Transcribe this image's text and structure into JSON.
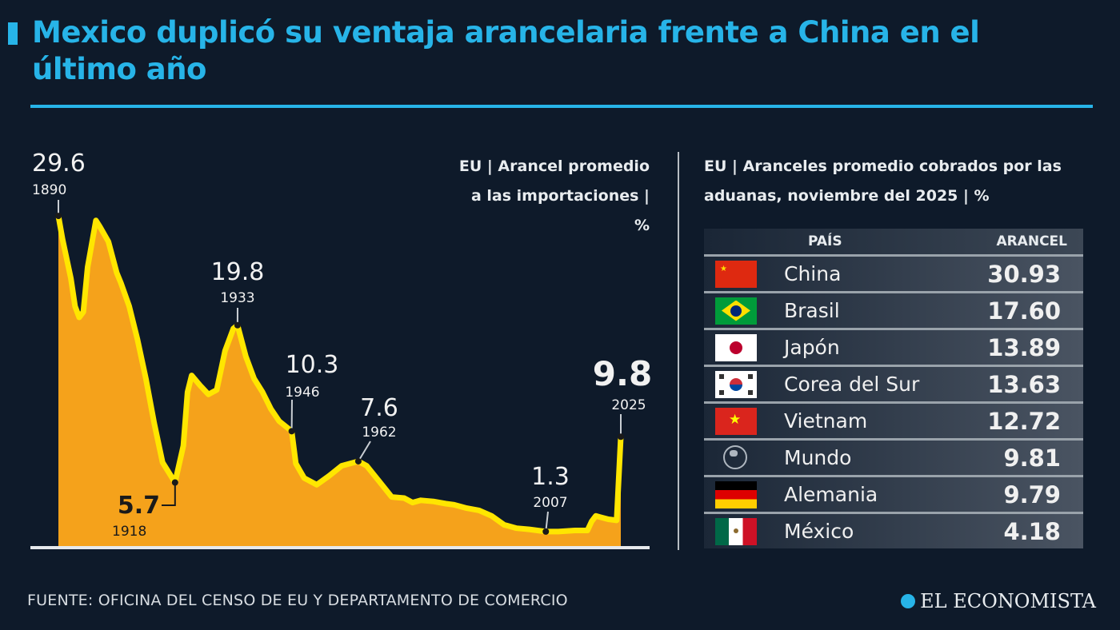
{
  "header": {
    "title": "Mexico duplicó su ventaja arancelaria frente a China en el último año",
    "accent_color": "#27b4e8"
  },
  "chart_data": [
    {
      "type": "area",
      "subtitle": "EU | Arancel promedio a las importaciones | %",
      "line_color": "#ffe600",
      "fill_color": "#f5a21b",
      "ylim": [
        0,
        30
      ],
      "xlim": [
        1890,
        2025
      ],
      "grid": false,
      "series": [
        {
          "x": [
            1890,
            1891,
            1893,
            1894,
            1895,
            1896,
            1897,
            1899,
            1900,
            1902,
            1904,
            1905,
            1907,
            1909,
            1911,
            1913,
            1915,
            1918,
            1920,
            1921,
            1922,
            1924,
            1926,
            1928,
            1930,
            1932,
            1933,
            1935,
            1937,
            1939,
            1941,
            1943,
            1946,
            1947,
            1949,
            1952,
            1955,
            1958,
            1962,
            1964,
            1967,
            1970,
            1973,
            1975,
            1977,
            1980,
            1983,
            1985,
            1988,
            1991,
            1994,
            1997,
            2000,
            2003,
            2007,
            2010,
            2014,
            2017,
            2018,
            2019,
            2020,
            2022,
            2024,
            2025
          ],
          "values": [
            29.6,
            27.5,
            24,
            21.5,
            20.5,
            21,
            25,
            29.2,
            28.6,
            27.3,
            24.5,
            23.6,
            21.5,
            18.5,
            15,
            11,
            7.5,
            5.7,
            9,
            13.8,
            15.3,
            14.4,
            13.6,
            14,
            17.5,
            19.5,
            19.8,
            17,
            15,
            13.8,
            12.3,
            11.2,
            10.3,
            7.4,
            6.1,
            5.5,
            6.3,
            7.2,
            7.6,
            7.2,
            5.8,
            4.4,
            4.3,
            3.9,
            4.1,
            4.0,
            3.8,
            3.7,
            3.4,
            3.2,
            2.7,
            1.9,
            1.6,
            1.5,
            1.3,
            1.3,
            1.4,
            1.4,
            2.2,
            2.7,
            2.6,
            2.4,
            2.3,
            9.8
          ]
        }
      ],
      "annotations": [
        {
          "year": 1890,
          "value": 29.6,
          "value_label": "29.6",
          "year_label": "1890"
        },
        {
          "year": 1918,
          "value": 5.7,
          "value_label": "5.7",
          "year_label": "1918"
        },
        {
          "year": 1933,
          "value": 19.8,
          "value_label": "19.8",
          "year_label": "1933"
        },
        {
          "year": 1946,
          "value": 10.3,
          "value_label": "10.3",
          "year_label": "1946"
        },
        {
          "year": 1962,
          "value": 7.6,
          "value_label": "7.6",
          "year_label": "1962"
        },
        {
          "year": 2007,
          "value": 1.3,
          "value_label": "1.3",
          "year_label": "2007"
        },
        {
          "year": 2025,
          "value": 9.8,
          "value_label": "9.8",
          "year_label": "2025"
        }
      ]
    },
    {
      "type": "table",
      "subtitle": "EU | Aranceles promedio cobrados por las aduanas, noviembre del 2025 | %",
      "columns": [
        "PAÍS",
        "ARANCEL"
      ],
      "rows": [
        {
          "flag": "china-flag",
          "country": "China",
          "value": "30.93"
        },
        {
          "flag": "brazil-flag",
          "country": "Brasil",
          "value": "17.60"
        },
        {
          "flag": "japan-flag",
          "country": "Japón",
          "value": "13.89"
        },
        {
          "flag": "south-korea-flag",
          "country": "Corea del Sur",
          "value": "13.63"
        },
        {
          "flag": "vietnam-flag",
          "country": "Vietnam",
          "value": "12.72"
        },
        {
          "flag": "globe-icon",
          "country": "Mundo",
          "value": "9.81"
        },
        {
          "flag": "germany-flag",
          "country": "Alemania",
          "value": "9.79"
        },
        {
          "flag": "mexico-flag",
          "country": "México",
          "value": "4.18"
        }
      ]
    }
  ],
  "footer": {
    "source": "FUENTE: OFICINA DEL CENSO DE EU Y DEPARTAMENTO DE COMERCIO",
    "logo": "EL ECONOMISTA"
  }
}
